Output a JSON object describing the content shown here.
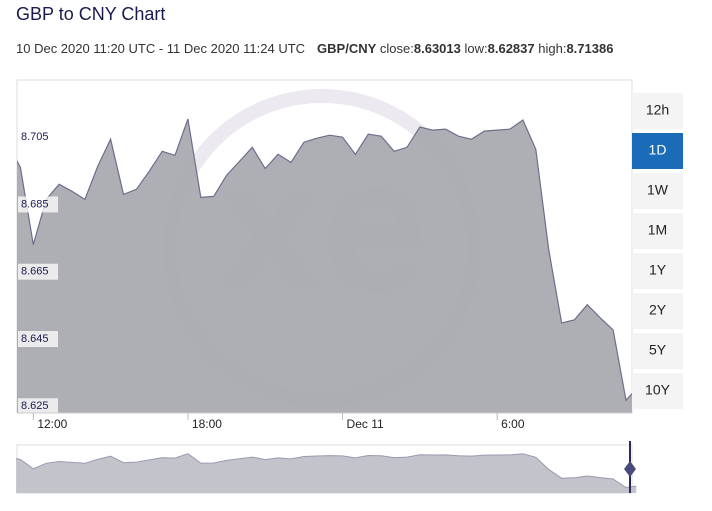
{
  "chart_data": {
    "type": "area",
    "title": "GBP to CNY Chart",
    "date_range": "10 Dec 2020 11:20 UTC - 11 Dec 2020 11:24 UTC",
    "pair": "GBP/CNY",
    "stats": [
      {
        "label": "close:",
        "value": "8.63013"
      },
      {
        "label": "low:",
        "value": "8.62837"
      },
      {
        "label": "high:",
        "value": "8.71386"
      }
    ],
    "watermark": "xe",
    "range_buttons": [
      "12h",
      "1D",
      "1W",
      "1M",
      "1Y",
      "2Y",
      "5Y",
      "10Y"
    ],
    "active_range": "1D",
    "color": "#6e6e8c",
    "fill": "#a7a7af",
    "x": [
      "2020-12-10T11:20",
      "2020-12-10T11:30",
      "2020-12-10T12:00",
      "2020-12-10T12:30",
      "2020-12-10T13:00",
      "2020-12-10T13:30",
      "2020-12-10T14:00",
      "2020-12-10T14:30",
      "2020-12-10T15:00",
      "2020-12-10T15:30",
      "2020-12-10T16:00",
      "2020-12-10T16:30",
      "2020-12-10T17:00",
      "2020-12-10T17:30",
      "2020-12-10T18:00",
      "2020-12-10T18:30",
      "2020-12-10T19:00",
      "2020-12-10T19:30",
      "2020-12-10T20:00",
      "2020-12-10T20:30",
      "2020-12-10T21:00",
      "2020-12-10T21:30",
      "2020-12-10T22:00",
      "2020-12-10T22:30",
      "2020-12-10T23:00",
      "2020-12-10T23:30",
      "2020-12-11T00:00",
      "2020-12-11T00:30",
      "2020-12-11T01:00",
      "2020-12-11T01:30",
      "2020-12-11T02:00",
      "2020-12-11T02:30",
      "2020-12-11T03:00",
      "2020-12-11T03:30",
      "2020-12-11T04:00",
      "2020-12-11T04:30",
      "2020-12-11T05:00",
      "2020-12-11T05:30",
      "2020-12-11T06:00",
      "2020-12-11T06:30",
      "2020-12-11T07:00",
      "2020-12-11T07:30",
      "2020-12-11T08:00",
      "2020-12-11T08:30",
      "2020-12-11T09:00",
      "2020-12-11T09:30",
      "2020-12-11T10:00",
      "2020-12-11T10:30",
      "2020-12-11T11:00",
      "2020-12-11T11:24"
    ],
    "values": [
      8.6984,
      8.696,
      8.6731,
      8.6865,
      8.691,
      8.6889,
      8.6865,
      8.6963,
      8.7044,
      8.688,
      8.6895,
      8.6949,
      8.7008,
      8.6996,
      8.7104,
      8.6871,
      8.6874,
      8.6937,
      8.6978,
      8.702,
      8.6957,
      8.6999,
      8.6975,
      8.7035,
      8.7047,
      8.7056,
      8.705,
      8.6999,
      8.7059,
      8.7053,
      8.7008,
      8.702,
      8.708,
      8.7071,
      8.7074,
      8.7053,
      8.7044,
      8.7068,
      8.7071,
      8.7074,
      8.7101,
      8.7014,
      8.6716,
      8.6498,
      8.6507,
      8.6552,
      8.6513,
      8.6477,
      8.6268,
      8.6301
    ],
    "xlim": [
      "2020-12-10T11:22",
      "2020-12-11T11:14"
    ],
    "xticks": [
      {
        "value": "2020-12-10T12:00",
        "label": "12:00"
      },
      {
        "value": "2020-12-10T18:00",
        "label": "18:00"
      },
      {
        "value": "2020-12-11T00:00",
        "label": "Dec 11"
      },
      {
        "value": "2020-12-11T06:00",
        "label": "6:00"
      }
    ],
    "ylim": [
      8.623,
      8.722
    ],
    "yticks": [
      8.705,
      8.685,
      8.665,
      8.645,
      8.625
    ]
  }
}
